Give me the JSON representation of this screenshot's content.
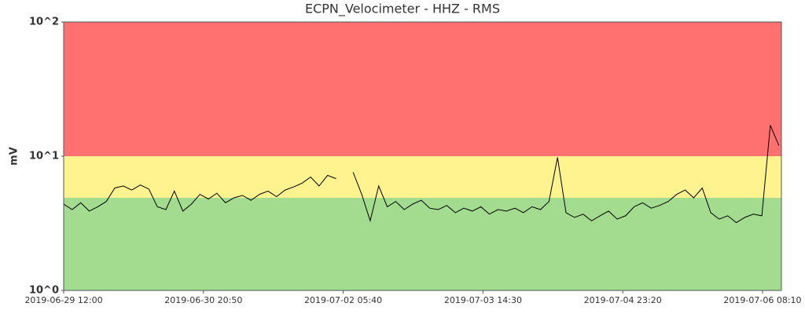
{
  "chart_data": {
    "type": "line",
    "title": "ECPN_Velocimeter - HHZ - RMS",
    "y_label": "mV",
    "log_y": true,
    "ylim": [
      1,
      100
    ],
    "yticks": [
      {
        "value": 1,
        "label": "10^0"
      },
      {
        "value": 10,
        "label": "10^1"
      },
      {
        "value": 100,
        "label": "10^2"
      }
    ],
    "xlim": [
      "2019-06-29 12:00",
      "2019-07-06 12:36"
    ],
    "xticks": [
      "2019-06-29 12:00",
      "2019-06-30 20:50",
      "2019-07-02 05:40",
      "2019-07-03 14:30",
      "2019-07-04 23:20",
      "2019-07-06 08:10"
    ],
    "bands": [
      {
        "from": 1,
        "to": 4.9,
        "color": "#a3db8f"
      },
      {
        "from": 4.9,
        "to": 10,
        "color": "#fff38f"
      },
      {
        "from": 10,
        "to": 100,
        "color": "#ff7070"
      }
    ],
    "x": [
      "2019-06-29 12:00",
      "2019-06-29 14:00",
      "2019-06-29 16:00",
      "2019-06-29 18:00",
      "2019-06-29 20:00",
      "2019-06-29 22:00",
      "2019-06-30 00:00",
      "2019-06-30 02:00",
      "2019-06-30 04:00",
      "2019-06-30 06:00",
      "2019-06-30 08:00",
      "2019-06-30 10:00",
      "2019-06-30 12:00",
      "2019-06-30 14:00",
      "2019-06-30 16:00",
      "2019-06-30 18:00",
      "2019-06-30 20:00",
      "2019-06-30 22:00",
      "2019-07-01 00:00",
      "2019-07-01 02:00",
      "2019-07-01 04:00",
      "2019-07-01 06:00",
      "2019-07-01 08:00",
      "2019-07-01 10:00",
      "2019-07-01 12:00",
      "2019-07-01 14:00",
      "2019-07-01 16:00",
      "2019-07-01 18:00",
      "2019-07-01 20:00",
      "2019-07-01 22:00",
      "2019-07-02 00:00",
      "2019-07-02 02:00",
      "2019-07-02 04:00",
      "2019-07-02 06:00",
      "2019-07-02 08:00",
      "2019-07-02 10:00",
      "2019-07-02 12:00",
      "2019-07-02 14:00",
      "2019-07-02 16:00",
      "2019-07-02 18:00",
      "2019-07-02 20:00",
      "2019-07-02 22:00",
      "2019-07-03 00:00",
      "2019-07-03 02:00",
      "2019-07-03 04:00",
      "2019-07-03 06:00",
      "2019-07-03 08:00",
      "2019-07-03 10:00",
      "2019-07-03 12:00",
      "2019-07-03 14:00",
      "2019-07-03 16:00",
      "2019-07-03 18:00",
      "2019-07-03 20:00",
      "2019-07-03 22:00",
      "2019-07-04 00:00",
      "2019-07-04 02:00",
      "2019-07-04 04:00",
      "2019-07-04 06:00",
      "2019-07-04 08:00",
      "2019-07-04 10:00",
      "2019-07-04 12:00",
      "2019-07-04 14:00",
      "2019-07-04 16:00",
      "2019-07-04 18:00",
      "2019-07-04 20:00",
      "2019-07-04 22:00",
      "2019-07-05 00:00",
      "2019-07-05 02:00",
      "2019-07-05 04:00",
      "2019-07-05 06:00",
      "2019-07-05 08:00",
      "2019-07-05 10:00",
      "2019-07-05 12:00",
      "2019-07-05 14:00",
      "2019-07-05 16:00",
      "2019-07-05 18:00",
      "2019-07-05 20:00",
      "2019-07-05 22:00",
      "2019-07-06 00:00",
      "2019-07-06 02:00",
      "2019-07-06 04:00",
      "2019-07-06 06:00",
      "2019-07-06 08:00",
      "2019-07-06 10:00",
      "2019-07-06 12:00"
    ],
    "values": [
      4.4,
      4.0,
      4.5,
      3.9,
      4.2,
      4.6,
      5.8,
      6.0,
      5.6,
      6.1,
      5.7,
      4.2,
      4.0,
      5.5,
      3.9,
      4.4,
      5.2,
      4.8,
      5.3,
      4.5,
      4.9,
      5.1,
      4.7,
      5.2,
      5.5,
      5.0,
      5.6,
      5.9,
      6.3,
      7.0,
      6.0,
      7.2,
      6.8,
      null,
      7.6,
      5.2,
      3.3,
      6.0,
      4.2,
      4.6,
      4.0,
      4.4,
      4.7,
      4.1,
      4.0,
      4.3,
      3.8,
      4.1,
      3.9,
      4.2,
      3.7,
      4.0,
      3.9,
      4.1,
      3.8,
      4.2,
      4.0,
      4.6,
      9.8,
      3.8,
      3.5,
      3.7,
      3.3,
      3.6,
      3.9,
      3.4,
      3.6,
      4.2,
      4.5,
      4.1,
      4.3,
      4.6,
      5.2,
      5.6,
      4.9,
      5.8,
      3.8,
      3.4,
      3.6,
      3.2,
      3.5,
      3.7,
      3.6,
      17,
      12
    ],
    "color": "#000000"
  }
}
